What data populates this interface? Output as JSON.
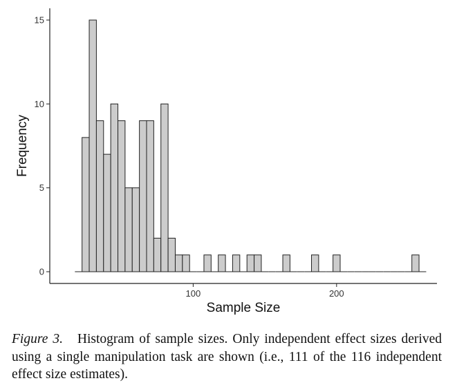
{
  "chart_data": {
    "type": "histogram",
    "xlabel": "Sample Size",
    "ylabel": "Frequency",
    "x_ticks": [
      100,
      200
    ],
    "y_ticks": [
      0,
      5,
      10,
      15
    ],
    "xlim": [
      0,
      270
    ],
    "ylim": [
      -0.7,
      15.7
    ],
    "bin_width": 5,
    "grid": false,
    "bins": [
      {
        "x": 20,
        "count": 0
      },
      {
        "x": 25,
        "count": 8
      },
      {
        "x": 30,
        "count": 15
      },
      {
        "x": 35,
        "count": 9
      },
      {
        "x": 40,
        "count": 7
      },
      {
        "x": 45,
        "count": 10
      },
      {
        "x": 50,
        "count": 9
      },
      {
        "x": 55,
        "count": 5
      },
      {
        "x": 60,
        "count": 5
      },
      {
        "x": 65,
        "count": 9
      },
      {
        "x": 70,
        "count": 9
      },
      {
        "x": 75,
        "count": 2
      },
      {
        "x": 80,
        "count": 10
      },
      {
        "x": 85,
        "count": 2
      },
      {
        "x": 90,
        "count": 1
      },
      {
        "x": 95,
        "count": 1
      },
      {
        "x": 100,
        "count": 0
      },
      {
        "x": 105,
        "count": 0
      },
      {
        "x": 110,
        "count": 1
      },
      {
        "x": 115,
        "count": 0
      },
      {
        "x": 120,
        "count": 1
      },
      {
        "x": 125,
        "count": 0
      },
      {
        "x": 130,
        "count": 1
      },
      {
        "x": 135,
        "count": 0
      },
      {
        "x": 140,
        "count": 1
      },
      {
        "x": 145,
        "count": 1
      },
      {
        "x": 150,
        "count": 0
      },
      {
        "x": 155,
        "count": 0
      },
      {
        "x": 160,
        "count": 0
      },
      {
        "x": 165,
        "count": 1
      },
      {
        "x": 170,
        "count": 0
      },
      {
        "x": 175,
        "count": 0
      },
      {
        "x": 180,
        "count": 0
      },
      {
        "x": 185,
        "count": 1
      },
      {
        "x": 190,
        "count": 0
      },
      {
        "x": 195,
        "count": 0
      },
      {
        "x": 200,
        "count": 1
      },
      {
        "x": 205,
        "count": 0
      },
      {
        "x": 210,
        "count": 0
      },
      {
        "x": 215,
        "count": 0
      },
      {
        "x": 220,
        "count": 0
      },
      {
        "x": 225,
        "count": 0
      },
      {
        "x": 230,
        "count": 0
      },
      {
        "x": 235,
        "count": 0
      },
      {
        "x": 240,
        "count": 0
      },
      {
        "x": 245,
        "count": 0
      },
      {
        "x": 250,
        "count": 0
      },
      {
        "x": 255,
        "count": 1
      },
      {
        "x": 260,
        "count": 0
      }
    ],
    "bar_fill": "#cccccc",
    "bar_stroke": "#222222"
  },
  "caption": {
    "label": "Figure 3.",
    "text": "Histogram of sample sizes. Only independent effect sizes derived using a single manipulation task are shown (i.e., 111 of the 116 independent effect size estimates)."
  }
}
